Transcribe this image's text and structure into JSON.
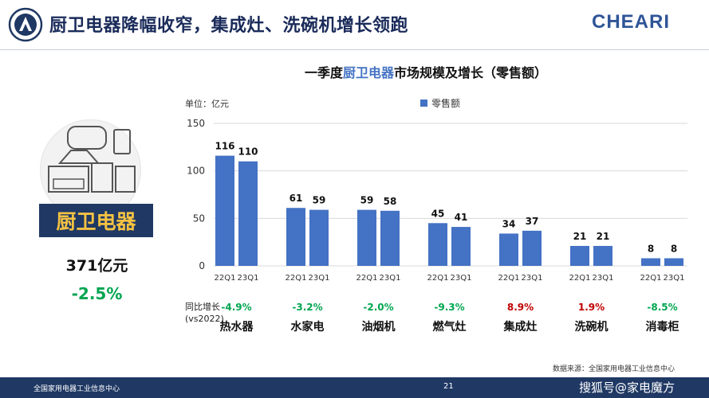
{
  "header": {
    "title": "厨卫电器降幅收窄，集成灶、洗碗机增长领跑",
    "brand_logo_text": "CHEARI",
    "left_logo": "institution-seal-icon"
  },
  "summary": {
    "category": "厨卫电器",
    "total": "371亿元",
    "growth": "-2.5%",
    "icon": "kitchen-appliances-icon"
  },
  "chart_data": {
    "type": "bar",
    "title_prefix": "一季度",
    "title_highlight": "厨卫电器",
    "title_suffix": "市场规模及增长（零售额）",
    "unit_label": "单位：亿元",
    "ylim": [
      0,
      150
    ],
    "yticks": [
      "0",
      "50",
      "100",
      "150"
    ],
    "grid": true,
    "legend_position": "top",
    "series": [
      {
        "name": "零售额",
        "color": "#4472c4"
      }
    ],
    "growth_label": [
      "同比增长",
      "(vs2022)"
    ],
    "groups": [
      {
        "name": "热水器",
        "bars": [
          {
            "label": "22Q1",
            "value": 116
          },
          {
            "label": "23Q1",
            "value": 110
          }
        ],
        "growth": "-4.9%"
      },
      {
        "name": "水家电",
        "bars": [
          {
            "label": "22Q1",
            "value": 61
          },
          {
            "label": "23Q1",
            "value": 59
          }
        ],
        "growth": "-3.2%"
      },
      {
        "name": "油烟机",
        "bars": [
          {
            "label": "22Q1",
            "value": 59
          },
          {
            "label": "23Q1",
            "value": 58
          }
        ],
        "growth": "-2.0%"
      },
      {
        "name": "燃气灶",
        "bars": [
          {
            "label": "22Q1",
            "value": 45
          },
          {
            "label": "23Q1",
            "value": 41
          }
        ],
        "growth": "-9.3%"
      },
      {
        "name": "集成灶",
        "bars": [
          {
            "label": "22Q1",
            "value": 34
          },
          {
            "label": "23Q1",
            "value": 37
          }
        ],
        "growth": "8.9%"
      },
      {
        "name": "洗碗机",
        "bars": [
          {
            "label": "22Q1",
            "value": 21
          },
          {
            "label": "23Q1",
            "value": 21
          }
        ],
        "growth": "1.9%"
      },
      {
        "name": "消毒柜",
        "bars": [
          {
            "label": "22Q1",
            "value": 8
          },
          {
            "label": "23Q1",
            "value": 8
          }
        ],
        "growth": "-8.5%"
      }
    ],
    "positive_color": "#c00000",
    "negative_color": "#00a550"
  },
  "source": "数据来源：全国家用电器工业信息中心",
  "footer": {
    "left": "全国家用电器工业信息中心",
    "page": "21",
    "right": "搜狐号@家电魔方"
  }
}
